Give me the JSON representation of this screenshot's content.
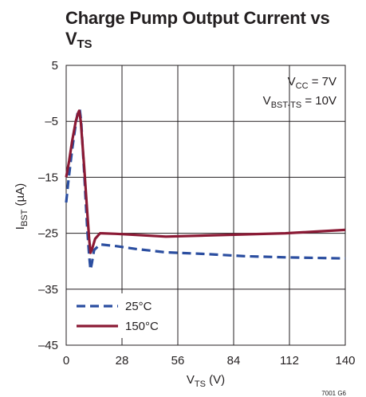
{
  "title": {
    "line1": "Charge Pump Output Current vs",
    "line2_main": "V",
    "line2_sub": "TS"
  },
  "chart_data": {
    "type": "line",
    "xlabel": {
      "main": "V",
      "sub": "TS",
      "suffix": " (V)"
    },
    "ylabel": {
      "main": "I",
      "sub": "BST",
      "suffix": " (µA)"
    },
    "xlim": [
      0,
      140
    ],
    "ylim": [
      -45,
      5
    ],
    "xticks": [
      0,
      28,
      56,
      84,
      112,
      140
    ],
    "yticks": [
      5,
      -5,
      -15,
      -25,
      -35,
      -45
    ],
    "xtick_labels": [
      "0",
      "28",
      "56",
      "84",
      "112",
      "140"
    ],
    "ytick_labels": [
      "5",
      "–5",
      "–15",
      "–25",
      "–35",
      "–45"
    ],
    "grid": true,
    "legend_position": "bottom-left",
    "annotations": [
      {
        "main": "V",
        "sub": "CC",
        "suffix": " = 7V"
      },
      {
        "main": "V",
        "sub": "BST-TS",
        "suffix": " = 10V"
      }
    ],
    "series": [
      {
        "name": "25°C",
        "color": "#2b4ea0",
        "style": "dashed",
        "points": [
          [
            0,
            -19.5
          ],
          [
            1,
            -16
          ],
          [
            3,
            -10
          ],
          [
            5,
            -5
          ],
          [
            6,
            -3
          ],
          [
            6.8,
            -2.9
          ],
          [
            7.5,
            -5
          ],
          [
            9,
            -14
          ],
          [
            10.5,
            -24
          ],
          [
            11.5,
            -29
          ],
          [
            12.2,
            -31.5
          ],
          [
            12.8,
            -30.5
          ],
          [
            14,
            -28
          ],
          [
            17,
            -27
          ],
          [
            25,
            -27.3
          ],
          [
            35,
            -27.8
          ],
          [
            50,
            -28.4
          ],
          [
            70,
            -28.7
          ],
          [
            90,
            -29.1
          ],
          [
            110,
            -29.3
          ],
          [
            125,
            -29.4
          ],
          [
            140,
            -29.5
          ]
        ]
      },
      {
        "name": "150°C",
        "color": "#8b1a35",
        "style": "solid",
        "points": [
          [
            0,
            -15
          ],
          [
            1.5,
            -12
          ],
          [
            3,
            -8.5
          ],
          [
            4.8,
            -5
          ],
          [
            6,
            -3.5
          ],
          [
            6.5,
            -3.1
          ],
          [
            7.3,
            -5
          ],
          [
            9,
            -13
          ],
          [
            10.5,
            -21
          ],
          [
            11.5,
            -26
          ],
          [
            12.2,
            -28.5
          ],
          [
            13,
            -27.8
          ],
          [
            14.5,
            -26
          ],
          [
            17,
            -25
          ],
          [
            25,
            -25.1
          ],
          [
            35,
            -25.3
          ],
          [
            50,
            -25.6
          ],
          [
            70,
            -25.4
          ],
          [
            90,
            -25.2
          ],
          [
            110,
            -25
          ],
          [
            125,
            -24.7
          ],
          [
            140,
            -24.4
          ]
        ]
      }
    ]
  },
  "figure_code": "7001 G6"
}
